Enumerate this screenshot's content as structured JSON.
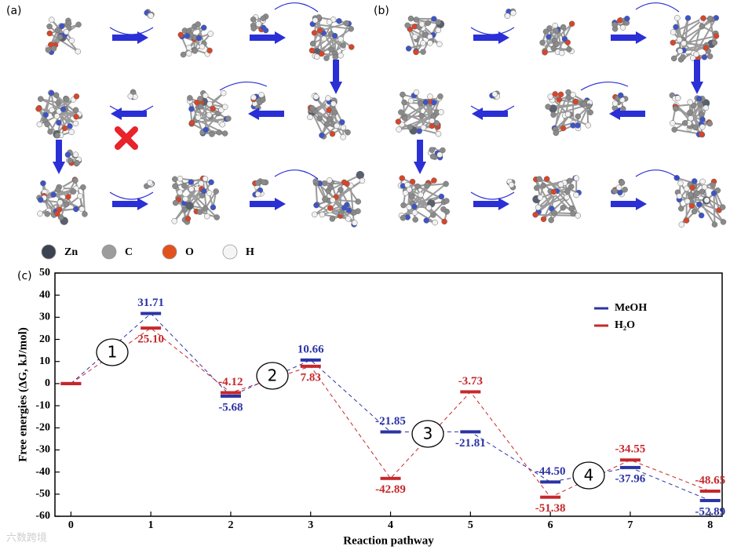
{
  "panels": {
    "a": "(a)",
    "b": "(b)",
    "c": "(c)"
  },
  "atom_legend": [
    "Zn",
    "C",
    "O",
    "H"
  ],
  "watermark": "六数跨境",
  "chart_data": {
    "type": "line",
    "ylabel": "Free energies (ΔG, kJ/mol)",
    "xlabel": "Reaction pathway",
    "x": [
      0,
      1,
      2,
      3,
      4,
      5,
      6,
      7,
      8
    ],
    "xlim": [
      -0.2,
      8.15
    ],
    "xticks": [
      0,
      1,
      2,
      3,
      4,
      5,
      6,
      7,
      8
    ],
    "ylim": [
      -60,
      50
    ],
    "yticks": [
      -60,
      -50,
      -40,
      -30,
      -20,
      -10,
      0,
      10,
      20,
      30,
      40,
      50
    ],
    "legend": "upper right",
    "annotations": [
      "1",
      "2",
      "3",
      "4"
    ],
    "series": [
      {
        "name": "MeOH",
        "color": "#2b33a6",
        "values": [
          0,
          31.71,
          -5.68,
          10.66,
          -21.85,
          -21.81,
          -44.5,
          -37.96,
          -52.89
        ],
        "value_labels": [
          null,
          "31.71",
          "-5.68",
          "10.66",
          "-21.85",
          "-21.81",
          "-44.50",
          "-37.96",
          "-52.89"
        ]
      },
      {
        "name": "H₂O",
        "color": "#c6282b",
        "values": [
          0,
          25.1,
          -4.12,
          7.83,
          -42.89,
          -3.73,
          -51.38,
          -34.55,
          -48.65
        ],
        "value_labels": [
          null,
          "25.10",
          "-4.12",
          "7.83",
          "-42.89",
          "-3.73",
          "-51.38",
          "-34.55",
          "-48.65"
        ]
      }
    ]
  }
}
